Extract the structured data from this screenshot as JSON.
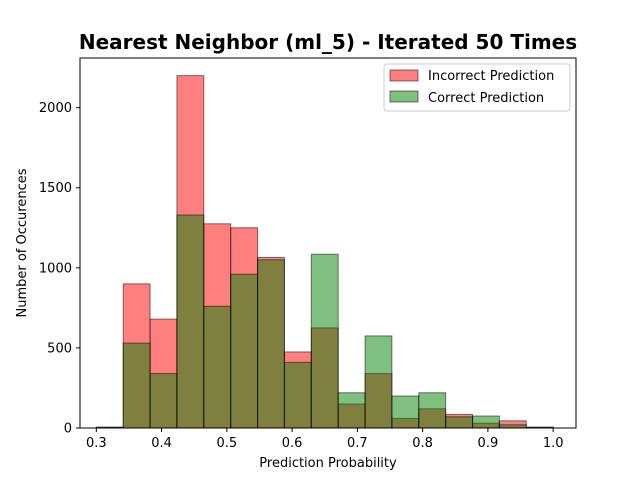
{
  "chart_data": {
    "type": "bar",
    "title": "Nearest Neighbor (ml_5) - Iterated 50 Times",
    "xlabel": "Prediction Probability",
    "ylabel": "Number of Occurences",
    "xlim": [
      0.275,
      1.035
    ],
    "ylim": [
      0,
      2310
    ],
    "xticks": [
      "0.3",
      "0.4",
      "0.5",
      "0.6",
      "0.7",
      "0.8",
      "0.9",
      "1.0"
    ],
    "yticks": [
      "0",
      "500",
      "1000",
      "1500",
      "2000"
    ],
    "bin_edges": [
      0.3,
      0.3412,
      0.3824,
      0.4235,
      0.4647,
      0.5059,
      0.5471,
      0.5882,
      0.6294,
      0.6706,
      0.7118,
      0.7529,
      0.7941,
      0.8353,
      0.8765,
      0.9176,
      0.9588,
      1.0
    ],
    "legend_position": "top-right",
    "grid": false,
    "overlap_color": "#807f3f",
    "series": [
      {
        "name": "Incorrect Prediction",
        "color": "#ff7f7f",
        "values": [
          5,
          900,
          680,
          2200,
          1275,
          1250,
          1065,
          475,
          625,
          150,
          340,
          60,
          120,
          85,
          30,
          45,
          5
        ]
      },
      {
        "name": "Correct Prediction",
        "color": "#7fbf7f",
        "values": [
          5,
          530,
          340,
          1330,
          760,
          960,
          1050,
          410,
          1085,
          220,
          575,
          200,
          220,
          70,
          75,
          20,
          5
        ]
      }
    ]
  }
}
